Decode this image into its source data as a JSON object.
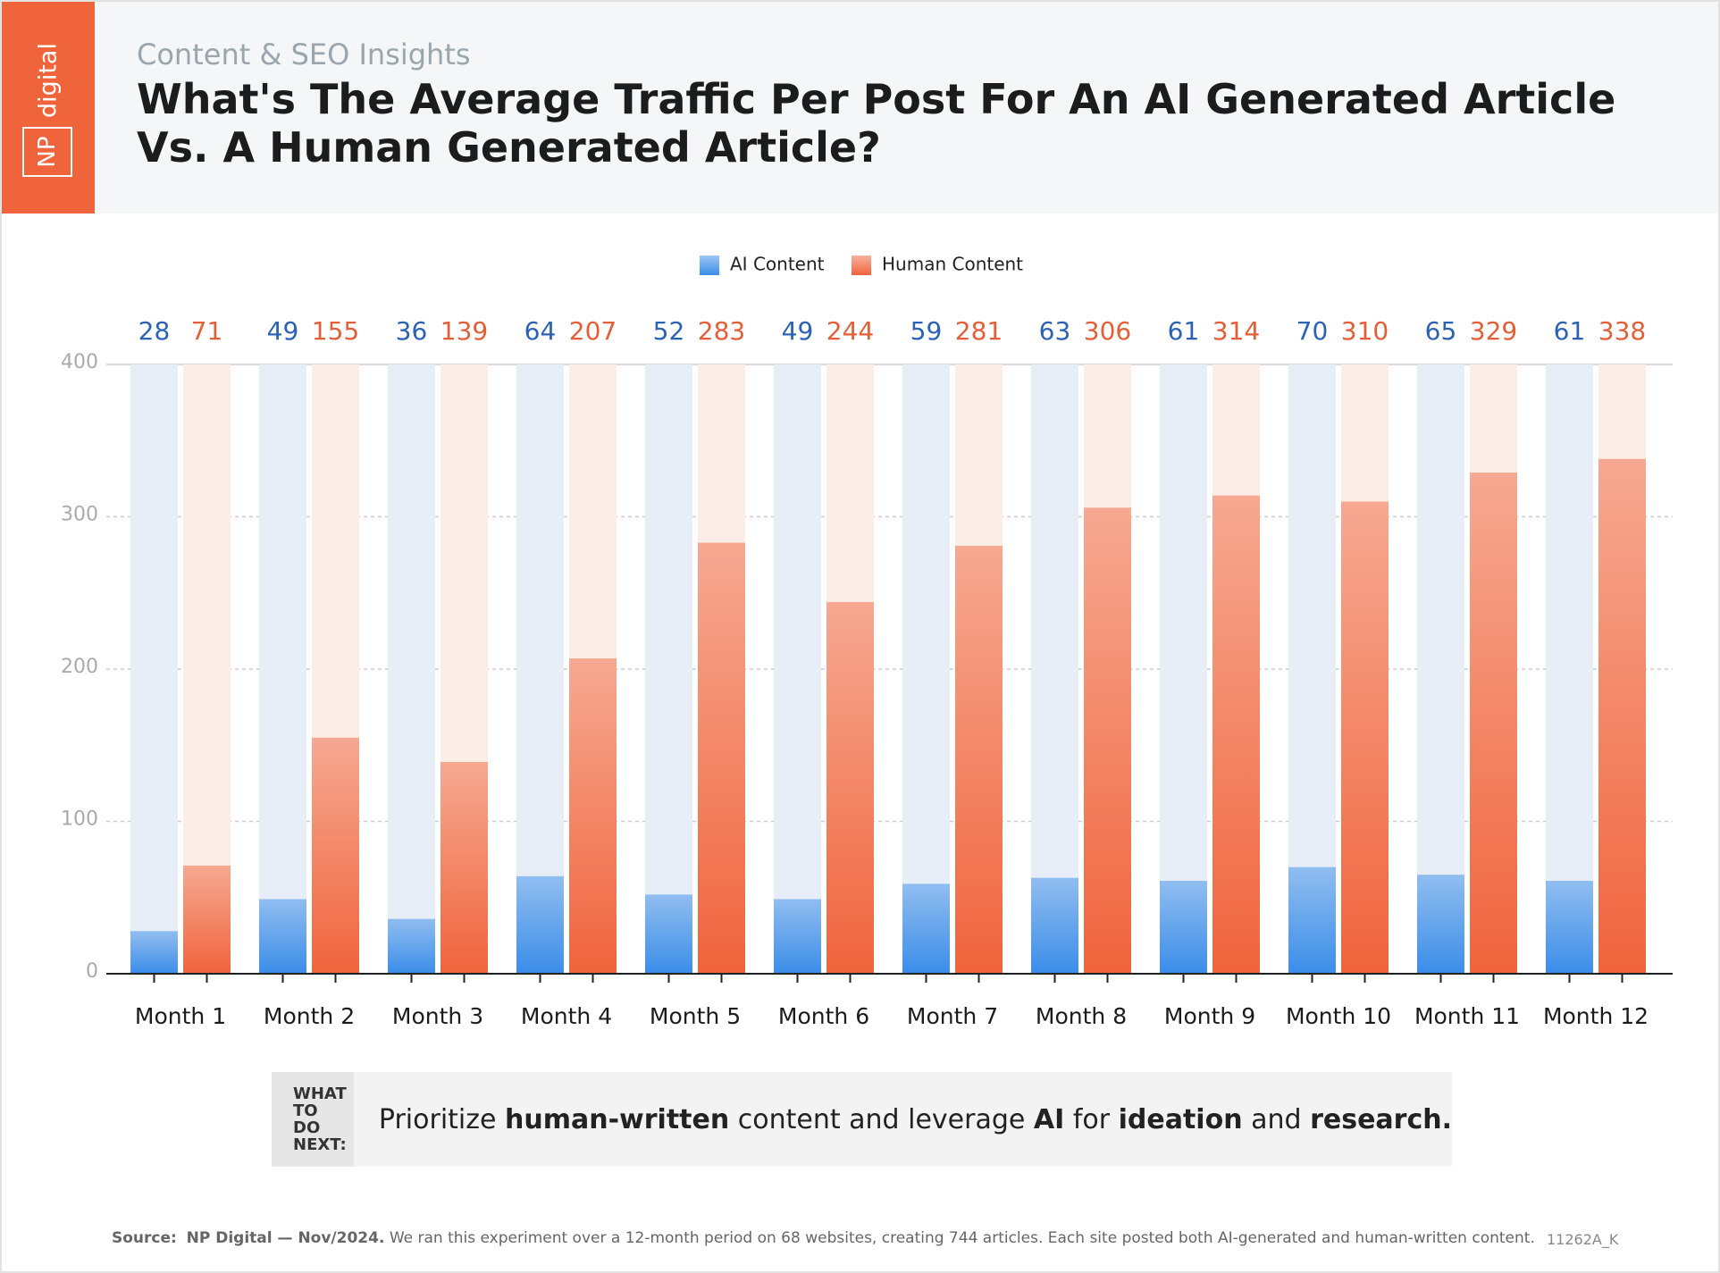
{
  "brand": {
    "mark": "NP",
    "name": "digital"
  },
  "chart_data": {
    "type": "bar",
    "subtitle": "Content & SEO Insights",
    "title": [
      "What's The Average Traffic Per Post For An AI Generated Article",
      "Vs. A Human Generated Article?"
    ],
    "categories": [
      "Month 1",
      "Month 2",
      "Month 3",
      "Month 4",
      "Month 5",
      "Month 6",
      "Month 7",
      "Month 8",
      "Month 9",
      "Month 10",
      "Month 11",
      "Month 12"
    ],
    "series": [
      {
        "name": "AI Content",
        "color": "#3b8de8",
        "values": [
          28,
          49,
          36,
          64,
          52,
          49,
          59,
          63,
          61,
          70,
          65,
          61
        ]
      },
      {
        "name": "Human Content",
        "color": "#f0643c",
        "values": [
          71,
          155,
          139,
          207,
          283,
          244,
          281,
          306,
          314,
          310,
          329,
          338
        ]
      }
    ],
    "ylim": [
      0,
      400
    ],
    "yticks": [
      0,
      100,
      200,
      300,
      400
    ],
    "grid": true
  },
  "callout": {
    "label": [
      "WHAT TO",
      "DO NEXT:"
    ],
    "segments": [
      {
        "text": "Prioritize ",
        "bold": false
      },
      {
        "text": "human-written",
        "bold": true
      },
      {
        "text": " content and leverage ",
        "bold": false
      },
      {
        "text": "AI",
        "bold": true
      },
      {
        "text": " for ",
        "bold": false
      },
      {
        "text": "ideation",
        "bold": true
      },
      {
        "text": " and ",
        "bold": false
      },
      {
        "text": "research.",
        "bold": true
      }
    ]
  },
  "source": {
    "label": "Source:",
    "org": "NP Digital — Nov/2024.",
    "text": "We ran this experiment over a 12-month period on 68 websites, creating 744 articles. Each site posted both AI-generated and human-written content.",
    "code": "11262A_K"
  }
}
